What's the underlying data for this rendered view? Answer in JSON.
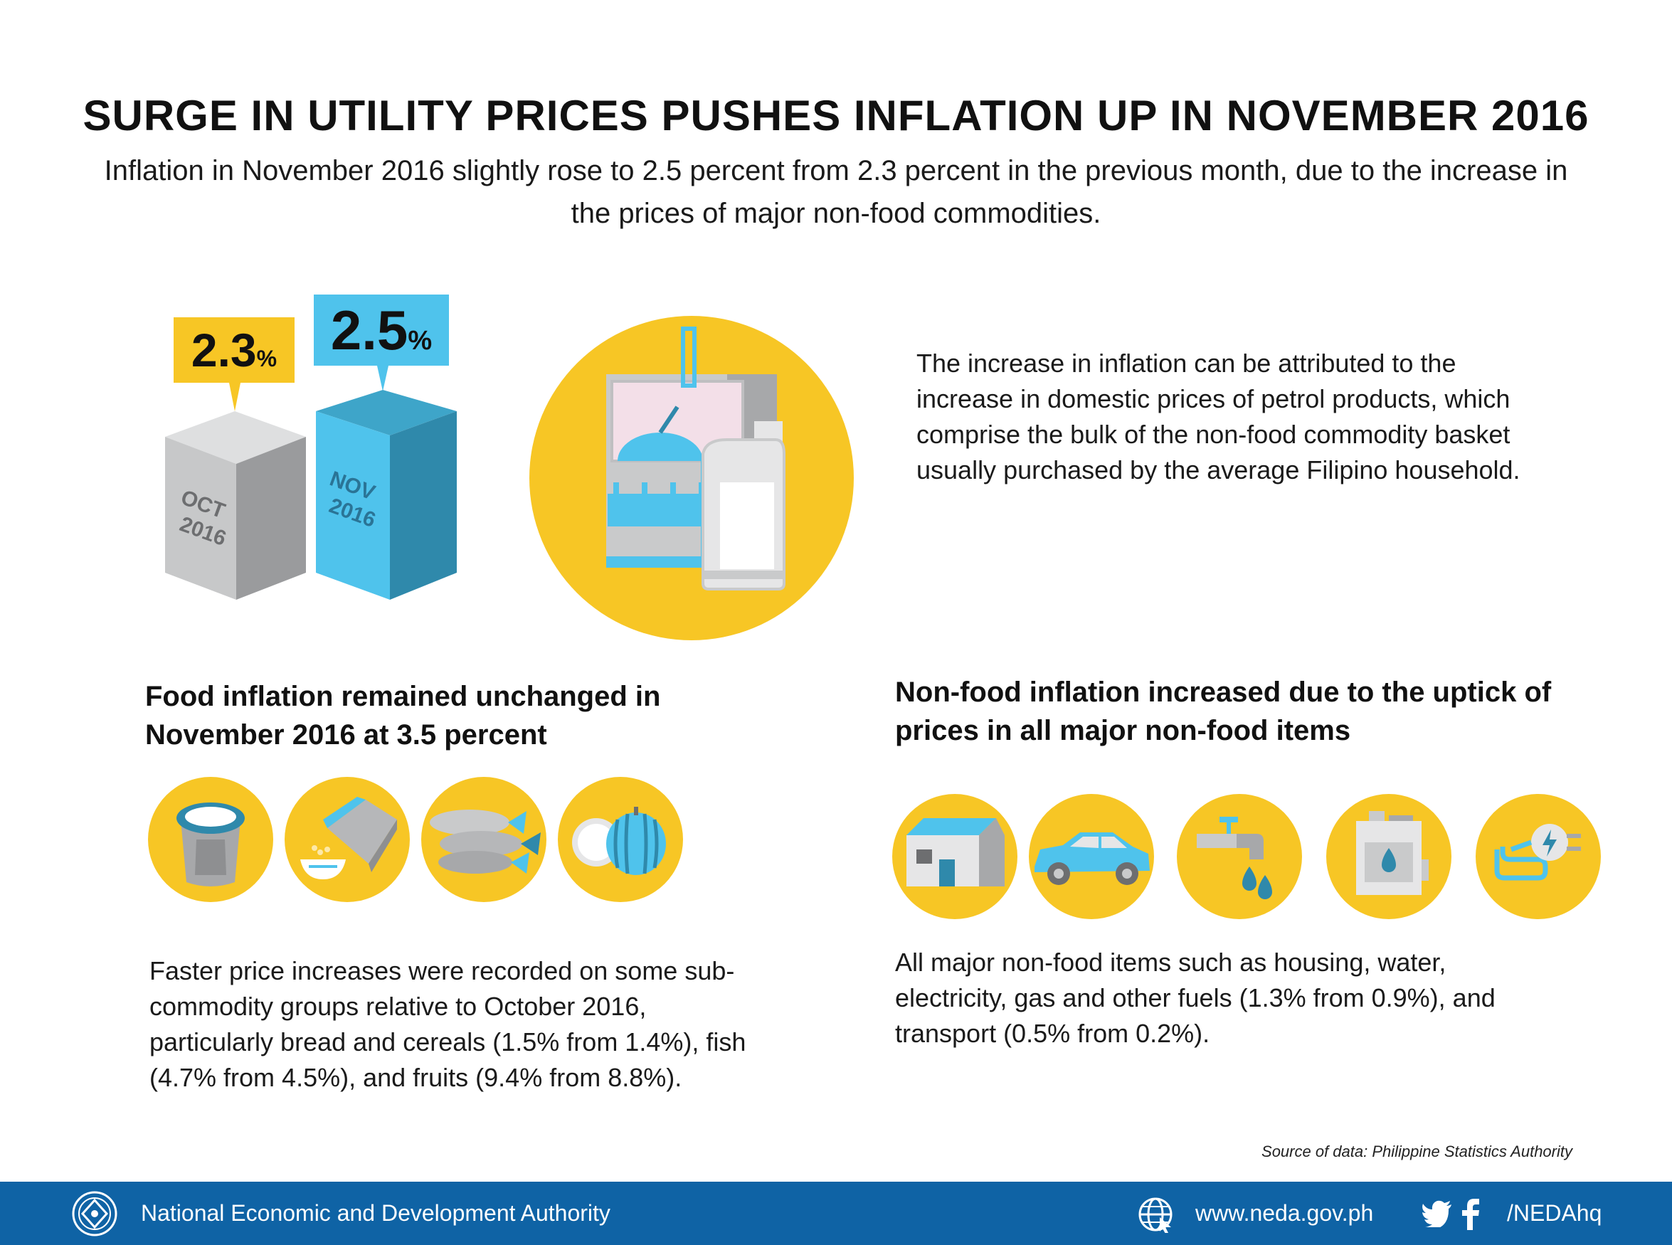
{
  "title": "SURGE IN UTILITY PRICES PUSHES INFLATION UP IN NOVEMBER 2016",
  "subtitle": "Inflation in November 2016 slightly rose to 2.5 percent from 2.3 percent in the previous month, due to the increase in the prices of major non-food commodities.",
  "comparison": {
    "oct": {
      "value": "2.3",
      "unit": "%",
      "month": "OCT",
      "year": "2016"
    },
    "nov": {
      "value": "2.5",
      "unit": "%",
      "month": "NOV",
      "year": "2016"
    }
  },
  "attribution_text": "The increase in inflation can be attributed to the increase in domestic prices of petrol products, which comprise the bulk of the non-food commodity basket usually purchased by the average Filipino household.",
  "food": {
    "title": "Food inflation remained unchanged in November 2016 at 3.5 percent",
    "icons": [
      "rice-sack-icon",
      "cereal-bowl-icon",
      "fish-icon",
      "fruits-icon"
    ],
    "text": "Faster price increases were recorded on some sub-commodity groups relative to October 2016, particularly bread and cereals (1.5% from 1.4%), fish (4.7% from 4.5%), and fruits (9.4% from 8.8%)."
  },
  "nonfood": {
    "title": "Non-food inflation increased due to the uptick of prices in all major non-food items",
    "icons": [
      "house-icon",
      "car-icon",
      "water-faucet-icon",
      "fuel-container-icon",
      "electric-plug-icon"
    ],
    "text": "All major non-food items such as housing, water, electricity, gas and other fuels (1.3% from 0.9%), and transport (0.5% from 0.2%)."
  },
  "source": "Source of data: Philippine Statistics Authority",
  "footer": {
    "org": "National Economic and Development Authority",
    "website": "www.neda.gov.ph",
    "handle": "/NEDAhq"
  },
  "colors": {
    "yellow": "#f7c625",
    "blue": "#4fc3ec",
    "dark_blue": "#2f89ab",
    "gray": "#c9cacb",
    "footer": "#0f63a5"
  }
}
